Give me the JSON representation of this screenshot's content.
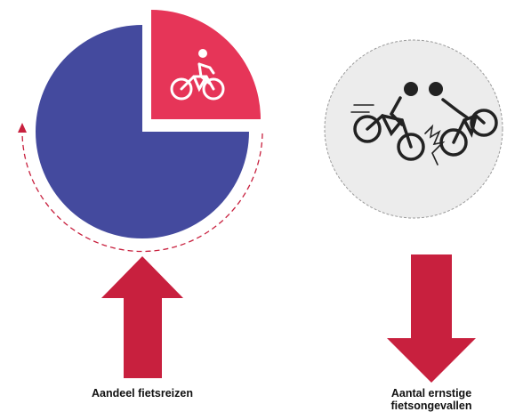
{
  "left": {
    "label": "Aandeel fietsreizen"
  },
  "right": {
    "label_lines": [
      "Aantal ernstige",
      "fietsongevallen"
    ]
  }
}
